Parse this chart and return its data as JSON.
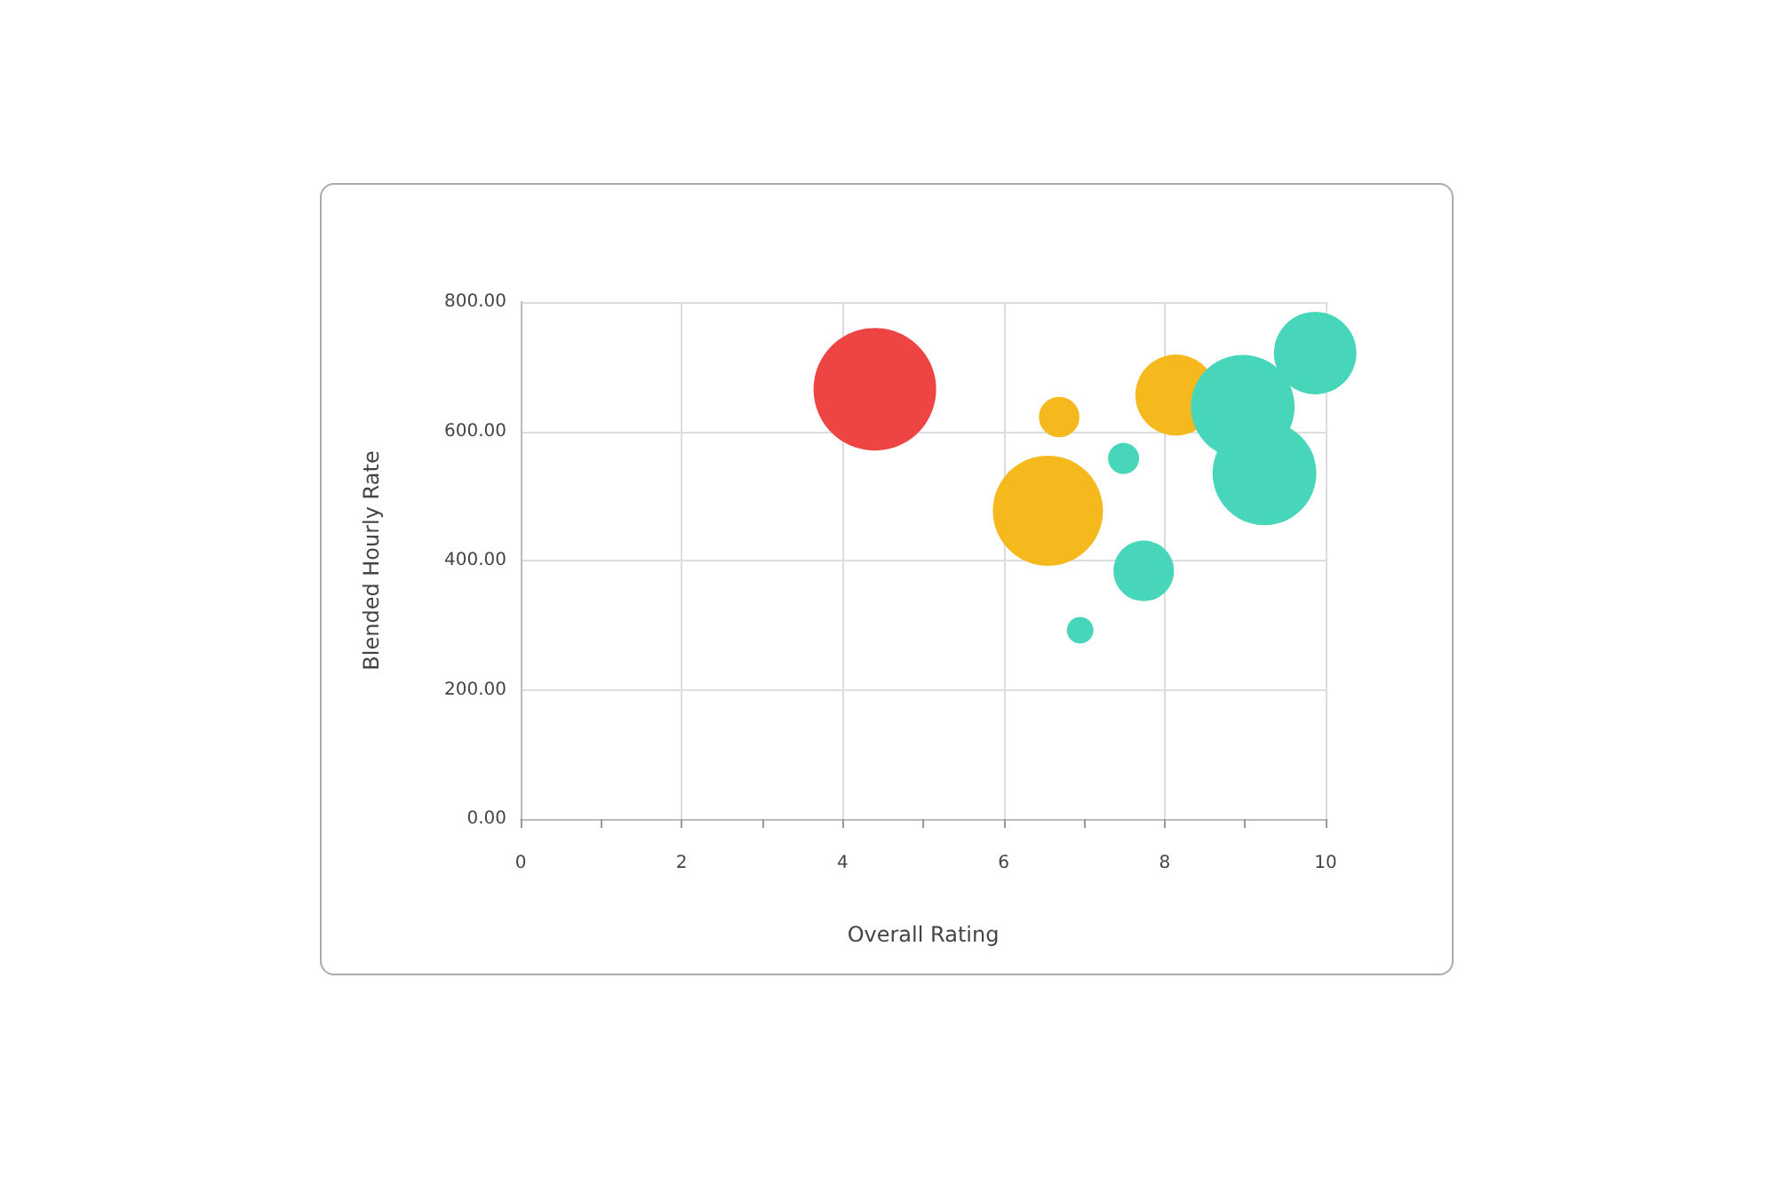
{
  "chart_data": {
    "type": "bubble",
    "xlabel": "Overall Rating",
    "ylabel": "Blended Hourly Rate",
    "xlim": [
      0,
      10
    ],
    "xticks": [
      0,
      {
        "value": 1,
        "label": null
      },
      2,
      {
        "value": 3,
        "label": null
      },
      4,
      {
        "value": 5,
        "label": null
      },
      6,
      {
        "value": 7,
        "label": null
      },
      8,
      {
        "value": 9,
        "label": null
      },
      10
    ],
    "ylim": [
      0,
      800
    ],
    "yticks": [
      {
        "value": 0,
        "label": "0.00"
      },
      {
        "value": 200,
        "label": "200.00"
      },
      {
        "value": 400,
        "label": "400.00"
      },
      {
        "value": 600,
        "label": "600.00"
      },
      {
        "value": 800,
        "label": "800.00"
      }
    ],
    "grid": true,
    "series": [
      {
        "color": "#ef4444",
        "x": [
          4.4
        ],
        "values": [
          665
        ],
        "sizes": [
          1
        ]
      },
      {
        "color": "#f5b91e",
        "x": [
          6.69,
          6.55,
          8.14
        ],
        "values": [
          622,
          477,
          656
        ],
        "sizes": [
          0.109,
          0.808,
          0.438
        ]
      },
      {
        "color": "#48d6bb",
        "x": [
          7.49,
          7.74,
          6.95,
          8.97,
          9.24,
          9.87
        ],
        "values": [
          558,
          384,
          292,
          638,
          535,
          721
        ],
        "sizes": [
          0.064,
          0.244,
          0.047,
          0.717,
          0.717,
          0.453
        ]
      }
    ]
  }
}
